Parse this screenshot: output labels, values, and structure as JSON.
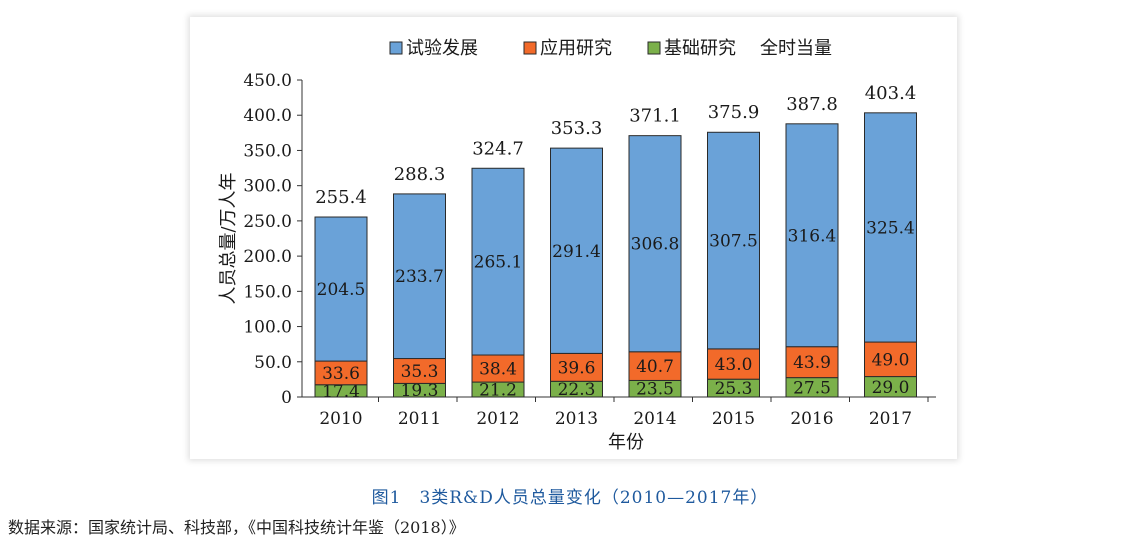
{
  "colors": {
    "experimental": "#6aa2d8",
    "applied": "#f26a2a",
    "basic": "#7bb04a",
    "caption": "#1f5a9e"
  },
  "chart_data": {
    "type": "bar",
    "stacked": true,
    "categories": [
      "2010",
      "2011",
      "2012",
      "2013",
      "2014",
      "2015",
      "2016",
      "2017"
    ],
    "series": [
      {
        "name": "试验发展",
        "color": "#6aa2d8",
        "values": [
          204.5,
          233.7,
          265.1,
          291.4,
          306.8,
          307.5,
          316.4,
          325.4
        ],
        "labels": [
          "204.5",
          "233.7",
          "265.1",
          "291.4",
          "306.8",
          "307.5",
          "316.4",
          "325.4"
        ]
      },
      {
        "name": "应用研究",
        "color": "#f26a2a",
        "values": [
          33.6,
          35.3,
          38.4,
          39.6,
          40.7,
          43.0,
          43.9,
          49.0
        ],
        "labels": [
          "33.6",
          "35.3",
          "38.4",
          "39.6",
          "40.7",
          "43.0",
          "43.9",
          "49.0"
        ]
      },
      {
        "name": "基础研究",
        "color": "#7bb04a",
        "values": [
          17.4,
          19.3,
          21.2,
          22.3,
          23.5,
          25.3,
          27.5,
          29.0
        ],
        "labels": [
          "17.4",
          "19.3",
          "21.2",
          "22.3",
          "23.5",
          "25.3",
          "27.5",
          "29.0"
        ]
      }
    ],
    "totals": [
      255.4,
      288.3,
      324.7,
      353.3,
      371.1,
      375.9,
      387.8,
      403.4
    ],
    "total_labels": [
      "255.4",
      "288.3",
      "324.7",
      "353.3",
      "371.1",
      "375.9",
      "387.8",
      "403.4"
    ],
    "legend_extra": "全时当量",
    "legend_position": "top",
    "xlabel": "年份",
    "ylabel": "人员总量/万人年",
    "ylim": [
      0,
      450
    ],
    "yticks": [
      "0",
      "50.0",
      "100.0",
      "150.0",
      "200.0",
      "250.0",
      "300.0",
      "350.0",
      "400.0",
      "450.0"
    ],
    "grid": false
  },
  "caption": "图1　3类R&D人员总量变化（2010—2017年）",
  "source": "数据来源：国家统计局、科技部，《中国科技统计年鉴（2018）》"
}
